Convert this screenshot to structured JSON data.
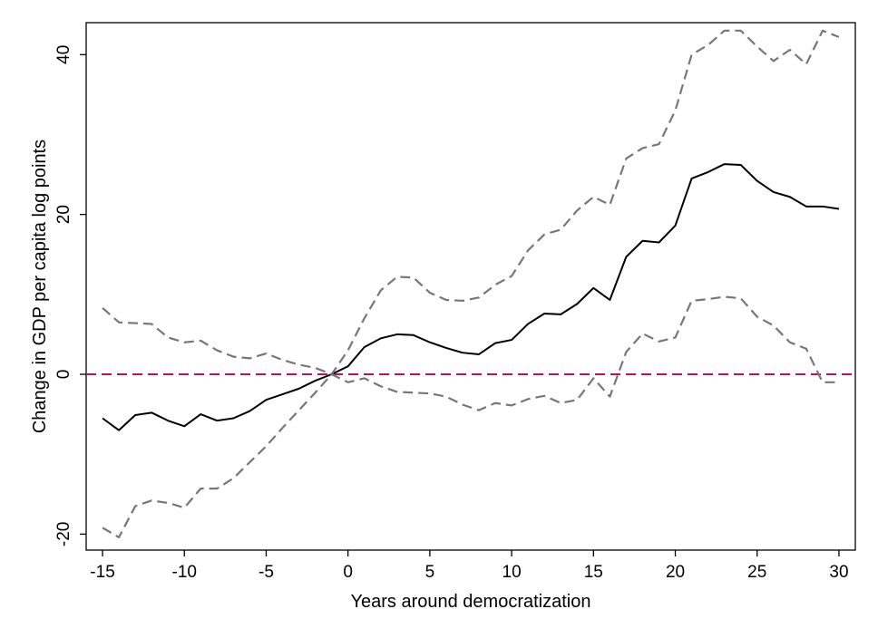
{
  "chart_data": {
    "type": "line",
    "title": "",
    "xlabel": "Years around democratization",
    "ylabel": "Change in GDP per capita log points",
    "xlim": [
      -16,
      31
    ],
    "ylim": [
      -22,
      44
    ],
    "xticks": [
      -15,
      -10,
      -5,
      0,
      5,
      10,
      15,
      20,
      25,
      30
    ],
    "yticks": [
      -20,
      0,
      20,
      40
    ],
    "grid": false,
    "legend": "none",
    "x": [
      -15,
      -14,
      -13,
      -12,
      -11,
      -10,
      -9,
      -8,
      -7,
      -6,
      -5,
      -4,
      -3,
      -2,
      -1,
      0,
      1,
      2,
      3,
      4,
      5,
      6,
      7,
      8,
      9,
      10,
      11,
      12,
      13,
      14,
      15,
      16,
      17,
      18,
      19,
      20,
      21,
      22,
      23,
      24,
      25,
      26,
      27,
      28,
      29,
      30
    ],
    "series": [
      {
        "role": "estimate",
        "color": "#000000",
        "style": "solid",
        "values": [
          -5.5,
          -7,
          -5.1,
          -4.8,
          -5.8,
          -6.5,
          -5,
          -5.8,
          -5.5,
          -4.6,
          -3.2,
          -2.5,
          -1.8,
          -0.8,
          0,
          1,
          3.4,
          4.5,
          5,
          4.9,
          4,
          3.3,
          2.7,
          2.5,
          3.9,
          4.3,
          6.3,
          7.6,
          7.5,
          8.8,
          10.8,
          9.3,
          14.7,
          16.7,
          16.5,
          18.6,
          24.5,
          25.3,
          26.3,
          26.2,
          24.2,
          22.8,
          22.2,
          21,
          21,
          20.7
        ]
      },
      {
        "role": "upper-ci",
        "color": "#777777",
        "style": "dashed",
        "values": [
          8.3,
          6.5,
          6.4,
          6.3,
          4.6,
          4,
          4.2,
          3,
          2.2,
          2,
          2.6,
          1.8,
          1.2,
          0.8,
          0,
          3,
          7,
          10.5,
          12.2,
          12.1,
          10.2,
          9.3,
          9.2,
          9.6,
          11.2,
          12.3,
          15.5,
          17.5,
          18.1,
          20.5,
          22.2,
          21.2,
          27,
          28.3,
          28.8,
          33,
          40,
          41.2,
          43,
          43,
          41,
          39.2,
          40.6,
          38.8,
          43,
          42.2
        ]
      },
      {
        "role": "lower-ci",
        "color": "#777777",
        "style": "dashed",
        "values": [
          -19.2,
          -20.4,
          -16.5,
          -15.8,
          -16.1,
          -16.7,
          -14.3,
          -14.3,
          -13,
          -11,
          -9,
          -6.7,
          -4.5,
          -2.3,
          0,
          -1,
          -0.5,
          -1.5,
          -2.2,
          -2.3,
          -2.4,
          -2.8,
          -3.8,
          -4.5,
          -3.6,
          -3.9,
          -3.1,
          -2.7,
          -3.6,
          -3.2,
          -0.5,
          -2.8,
          2.8,
          5.1,
          4.1,
          4.6,
          9.2,
          9.4,
          9.7,
          9.5,
          7.2,
          6.1,
          4,
          3.2,
          -1,
          -1
        ]
      }
    ],
    "reference_line": {
      "y": 0,
      "color": "#c0134e",
      "style": "dashed"
    }
  }
}
